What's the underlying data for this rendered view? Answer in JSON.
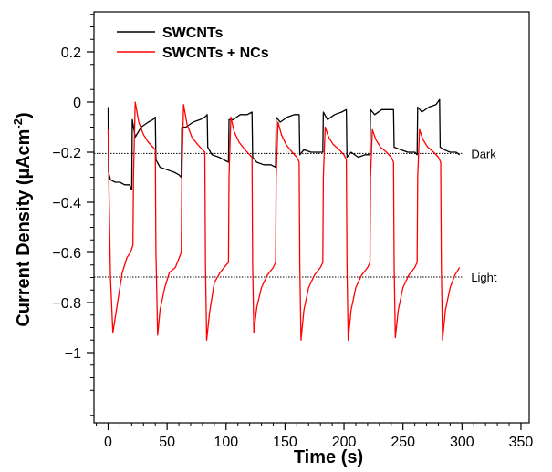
{
  "chart_data": {
    "type": "line",
    "xlabel": "Time (s)",
    "ylabel_main": "Current Density (µAcm",
    "ylabel_sup": "-2",
    "ylabel_close": ")",
    "xlim": [
      -12,
      357
    ],
    "ylim": [
      -1.28,
      0.36
    ],
    "xticks": [
      0,
      50,
      100,
      150,
      200,
      250,
      300,
      350
    ],
    "xtick_labels": [
      "0",
      "50",
      "100",
      "150",
      "200",
      "250",
      "300",
      "350"
    ],
    "yticks": [
      0.2,
      0,
      -0.2,
      -0.4,
      -0.6,
      -0.8,
      -1
    ],
    "ytick_labels": [
      "0.2",
      "0",
      "−0.2",
      "−0.4",
      "−0.6",
      "−0.8",
      "−1"
    ],
    "reference_lines": [
      {
        "y": -0.205,
        "label": "Dark"
      },
      {
        "y": -0.698,
        "label": "Light"
      }
    ],
    "legend_position": "top-left",
    "series": [
      {
        "name": "SWCNTs",
        "color": "#000000",
        "points": [
          [
            0.0,
            -0.02
          ],
          [
            0.3,
            -0.28
          ],
          [
            2,
            -0.31
          ],
          [
            6,
            -0.32
          ],
          [
            10,
            -0.32
          ],
          [
            14,
            -0.33
          ],
          [
            18,
            -0.33
          ],
          [
            20,
            -0.35
          ],
          [
            20.5,
            -0.07
          ],
          [
            23,
            -0.14
          ],
          [
            28,
            -0.1
          ],
          [
            34,
            -0.08
          ],
          [
            38,
            -0.07
          ],
          [
            40,
            -0.06
          ],
          [
            40.5,
            -0.23
          ],
          [
            44,
            -0.26
          ],
          [
            50,
            -0.27
          ],
          [
            56,
            -0.28
          ],
          [
            60,
            -0.29
          ],
          [
            62,
            -0.3
          ],
          [
            62.5,
            -0.1
          ],
          [
            66,
            -0.1
          ],
          [
            72,
            -0.08
          ],
          [
            78,
            -0.07
          ],
          [
            82,
            -0.06
          ],
          [
            84,
            -0.05
          ],
          [
            84.5,
            -0.18
          ],
          [
            88,
            -0.21
          ],
          [
            94,
            -0.22
          ],
          [
            98,
            -0.23
          ],
          [
            102,
            -0.24
          ],
          [
            102.5,
            -0.07
          ],
          [
            106,
            -0.07
          ],
          [
            112,
            -0.05
          ],
          [
            118,
            -0.05
          ],
          [
            122,
            -0.04
          ],
          [
            122.5,
            -0.22
          ],
          [
            126,
            -0.24
          ],
          [
            132,
            -0.25
          ],
          [
            138,
            -0.25
          ],
          [
            142,
            -0.26
          ],
          [
            142.5,
            -0.06
          ],
          [
            146,
            -0.08
          ],
          [
            152,
            -0.06
          ],
          [
            158,
            -0.05
          ],
          [
            162,
            -0.05
          ],
          [
            162.5,
            -0.21
          ],
          [
            166,
            -0.19
          ],
          [
            172,
            -0.2
          ],
          [
            178,
            -0.2
          ],
          [
            182,
            -0.2
          ],
          [
            182.5,
            -0.04
          ],
          [
            186,
            -0.07
          ],
          [
            192,
            -0.05
          ],
          [
            198,
            -0.04
          ],
          [
            202,
            -0.03
          ],
          [
            202.5,
            -0.22
          ],
          [
            206,
            -0.2
          ],
          [
            212,
            -0.22
          ],
          [
            218,
            -0.21
          ],
          [
            222,
            -0.21
          ],
          [
            222.5,
            -0.03
          ],
          [
            226,
            -0.05
          ],
          [
            232,
            -0.03
          ],
          [
            238,
            -0.03
          ],
          [
            242,
            -0.03
          ],
          [
            242.5,
            -0.18
          ],
          [
            248,
            -0.19
          ],
          [
            254,
            -0.2
          ],
          [
            260,
            -0.2
          ],
          [
            262,
            -0.21
          ],
          [
            262.5,
            -0.02
          ],
          [
            266,
            -0.04
          ],
          [
            272,
            -0.02
          ],
          [
            278,
            -0.01
          ],
          [
            281,
            0.01
          ],
          [
            281.5,
            -0.18
          ],
          [
            285,
            -0.19
          ],
          [
            290,
            -0.2
          ],
          [
            295,
            -0.2
          ],
          [
            298,
            -0.21
          ]
        ]
      },
      {
        "name": "SWCNTs + NCs",
        "color": "#ff0000",
        "points": [
          [
            0.0,
            -0.11
          ],
          [
            0.5,
            -0.3
          ],
          [
            2,
            -0.7
          ],
          [
            4,
            -0.92
          ],
          [
            6,
            -0.86
          ],
          [
            9,
            -0.77
          ],
          [
            12,
            -0.68
          ],
          [
            16,
            -0.62
          ],
          [
            19,
            -0.6
          ],
          [
            21,
            -0.57
          ],
          [
            21.5,
            -0.3
          ],
          [
            23,
            0.0
          ],
          [
            26,
            -0.08
          ],
          [
            30,
            -0.13
          ],
          [
            34,
            -0.16
          ],
          [
            38,
            -0.18
          ],
          [
            40,
            -0.19
          ],
          [
            40.5,
            -0.6
          ],
          [
            42,
            -0.93
          ],
          [
            44,
            -0.83
          ],
          [
            48,
            -0.74
          ],
          [
            52,
            -0.68
          ],
          [
            57,
            -0.66
          ],
          [
            62,
            -0.6
          ],
          [
            62.5,
            -0.3
          ],
          [
            64,
            -0.01
          ],
          [
            67,
            -0.09
          ],
          [
            71,
            -0.14
          ],
          [
            76,
            -0.17
          ],
          [
            80,
            -0.19
          ],
          [
            82,
            -0.2
          ],
          [
            82.5,
            -0.65
          ],
          [
            83.5,
            -0.95
          ],
          [
            86,
            -0.84
          ],
          [
            90,
            -0.72
          ],
          [
            95,
            -0.68
          ],
          [
            100,
            -0.65
          ],
          [
            102,
            -0.64
          ],
          [
            102.5,
            -0.3
          ],
          [
            104,
            -0.06
          ],
          [
            107,
            -0.12
          ],
          [
            111,
            -0.16
          ],
          [
            116,
            -0.19
          ],
          [
            120,
            -0.21
          ],
          [
            122,
            -0.22
          ],
          [
            122.5,
            -0.65
          ],
          [
            123.5,
            -0.92
          ],
          [
            126,
            -0.82
          ],
          [
            130,
            -0.74
          ],
          [
            135,
            -0.69
          ],
          [
            140,
            -0.66
          ],
          [
            142,
            -0.64
          ],
          [
            142.5,
            -0.3
          ],
          [
            144,
            -0.08
          ],
          [
            147,
            -0.13
          ],
          [
            151,
            -0.17
          ],
          [
            156,
            -0.2
          ],
          [
            160,
            -0.22
          ],
          [
            162,
            -0.24
          ],
          [
            162.5,
            -0.65
          ],
          [
            163.5,
            -0.95
          ],
          [
            166,
            -0.83
          ],
          [
            170,
            -0.74
          ],
          [
            175,
            -0.69
          ],
          [
            180,
            -0.66
          ],
          [
            182,
            -0.64
          ],
          [
            182.5,
            -0.3
          ],
          [
            184,
            -0.1
          ],
          [
            187,
            -0.14
          ],
          [
            191,
            -0.17
          ],
          [
            196,
            -0.19
          ],
          [
            200,
            -0.21
          ],
          [
            202,
            -0.23
          ],
          [
            202.5,
            -0.65
          ],
          [
            203.5,
            -0.95
          ],
          [
            206,
            -0.83
          ],
          [
            210,
            -0.74
          ],
          [
            215,
            -0.69
          ],
          [
            220,
            -0.66
          ],
          [
            222,
            -0.64
          ],
          [
            222.5,
            -0.3
          ],
          [
            224,
            -0.11
          ],
          [
            227,
            -0.15
          ],
          [
            231,
            -0.18
          ],
          [
            236,
            -0.2
          ],
          [
            240,
            -0.22
          ],
          [
            242,
            -0.24
          ],
          [
            242.5,
            -0.65
          ],
          [
            243.5,
            -0.94
          ],
          [
            246,
            -0.83
          ],
          [
            250,
            -0.74
          ],
          [
            255,
            -0.69
          ],
          [
            260,
            -0.66
          ],
          [
            262,
            -0.64
          ],
          [
            262.5,
            -0.3
          ],
          [
            264,
            -0.11
          ],
          [
            267,
            -0.15
          ],
          [
            271,
            -0.18
          ],
          [
            276,
            -0.2
          ],
          [
            280,
            -0.22
          ],
          [
            282,
            -0.24
          ],
          [
            282.5,
            -0.65
          ],
          [
            283.5,
            -0.95
          ],
          [
            286,
            -0.83
          ],
          [
            290,
            -0.74
          ],
          [
            294,
            -0.69
          ],
          [
            298,
            -0.66
          ]
        ]
      }
    ]
  }
}
